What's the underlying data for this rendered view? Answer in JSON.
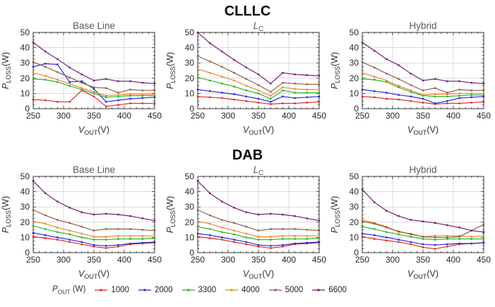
{
  "chart_groups": [
    {
      "title": "CLLLC"
    },
    {
      "title": "DAB"
    }
  ],
  "axis": {
    "x": {
      "label_main": "V",
      "label_sub": "OUT",
      "label_unit": "(V)",
      "min": 250,
      "max": 450,
      "ticks": [
        250,
        300,
        350,
        400,
        450
      ],
      "minor_step": 10,
      "grid": [
        300,
        350,
        400
      ]
    },
    "y": {
      "label_main": "P",
      "label_sub": "LOSS",
      "label_unit": "(W)",
      "min": 0,
      "max": 50,
      "ticks": [
        0,
        10,
        20,
        30,
        40,
        50
      ],
      "minor_step": 2.5,
      "grid": [
        10,
        20,
        30,
        40
      ]
    }
  },
  "legend": {
    "label_main": "P",
    "label_sub": "OUT",
    "label_unit": "(W)",
    "entries": [
      {
        "label": "1000",
        "color": "#e02721"
      },
      {
        "label": "2000",
        "color": "#2727d8"
      },
      {
        "label": "3300",
        "color": "#23b523"
      },
      {
        "label": "4000",
        "color": "#e8882a"
      },
      {
        "label": "5000",
        "color": "#8e5c44"
      },
      {
        "label": "6600",
        "color": "#6f1a72"
      }
    ]
  },
  "chart_data": [
    {
      "type": "line",
      "group": "CLLLC",
      "title_main": "Base Line",
      "title_sub": "",
      "xlim": [
        250,
        450
      ],
      "ylim": [
        0,
        50
      ],
      "xlabel": "V_OUT(V)",
      "ylabel": "P_LOSS(W)",
      "x": [
        250,
        270,
        290,
        310,
        330,
        350,
        370,
        390,
        410,
        430,
        450
      ],
      "series": [
        {
          "name": "1000",
          "values": [
            6,
            5.5,
            4.5,
            4.5,
            12,
            8,
            1.5,
            2.5,
            3.5,
            3.5,
            3.5
          ]
        },
        {
          "name": "2000",
          "values": [
            27.5,
            29.5,
            29,
            17.5,
            18,
            13,
            4.5,
            5.5,
            6.5,
            7,
            7.5
          ]
        },
        {
          "name": "3300",
          "values": [
            19.5,
            19,
            17.5,
            15,
            12.5,
            10,
            7.5,
            8,
            8.5,
            8.5,
            8.5
          ]
        },
        {
          "name": "4000",
          "values": [
            23.5,
            21.5,
            19,
            16.5,
            13.5,
            11,
            8.5,
            9,
            9.5,
            9.5,
            9.5
          ]
        },
        {
          "name": "5000",
          "values": [
            30.5,
            27.5,
            24,
            20.5,
            17,
            14,
            13.5,
            10.5,
            12.5,
            12,
            12
          ]
        },
        {
          "name": "6600",
          "values": [
            43.5,
            37.5,
            32.5,
            27,
            22.5,
            18.5,
            19.5,
            18,
            18,
            17,
            16.5
          ]
        }
      ]
    },
    {
      "type": "line",
      "group": "CLLLC",
      "title_main": "L",
      "title_sub": "C",
      "xlim": [
        250,
        450
      ],
      "ylim": [
        0,
        50
      ],
      "xlabel": "V_OUT(V)",
      "ylabel": "P_LOSS(W)",
      "x": [
        250,
        270,
        290,
        310,
        330,
        350,
        370,
        390,
        410,
        430,
        450
      ],
      "series": [
        {
          "name": "1000",
          "values": [
            8,
            7.5,
            7,
            6,
            5,
            4,
            3,
            3.5,
            3.5,
            4,
            4.5
          ]
        },
        {
          "name": "2000",
          "values": [
            12.5,
            11.5,
            10.5,
            9.5,
            8,
            6.5,
            4.5,
            8,
            7,
            7.5,
            8
          ]
        },
        {
          "name": "3300",
          "values": [
            20.5,
            18.5,
            16.5,
            14.5,
            12,
            10,
            6.5,
            12,
            10.5,
            10.5,
            10.5
          ]
        },
        {
          "name": "4000",
          "values": [
            26,
            23.5,
            21,
            18.5,
            15,
            12,
            8.5,
            14,
            13,
            12.5,
            12.5
          ]
        },
        {
          "name": "5000",
          "values": [
            34.5,
            31,
            27.5,
            23.5,
            19.5,
            15.5,
            11,
            17,
            16.5,
            16,
            16
          ]
        },
        {
          "name": "6600",
          "values": [
            50,
            43,
            37.5,
            32,
            27,
            22.5,
            16.5,
            23.5,
            22.5,
            22,
            21.5
          ]
        }
      ]
    },
    {
      "type": "line",
      "group": "CLLLC",
      "title_main": "Hybrid",
      "title_sub": "",
      "xlim": [
        250,
        450
      ],
      "ylim": [
        0,
        50
      ],
      "xlabel": "V_OUT(V)",
      "ylabel": "P_LOSS(W)",
      "x": [
        250,
        270,
        290,
        310,
        330,
        350,
        370,
        390,
        410,
        430,
        450
      ],
      "series": [
        {
          "name": "1000",
          "values": [
            8,
            7.5,
            6.5,
            6,
            5,
            4,
            3,
            3.5,
            3.5,
            4,
            4.5
          ]
        },
        {
          "name": "2000",
          "values": [
            12.5,
            11.5,
            10.5,
            9,
            8,
            6.5,
            3.5,
            5,
            7,
            7.5,
            8
          ]
        },
        {
          "name": "3300",
          "values": [
            19.5,
            19,
            17.5,
            14,
            11,
            8.5,
            8,
            8,
            8.5,
            9,
            9
          ]
        },
        {
          "name": "4000",
          "values": [
            23.5,
            21,
            18.5,
            15,
            12,
            9,
            9.5,
            9.5,
            10,
            10,
            10
          ]
        },
        {
          "name": "5000",
          "values": [
            30.5,
            27,
            23,
            19.5,
            15.5,
            12,
            13.5,
            10.5,
            12.5,
            12,
            12
          ]
        },
        {
          "name": "6600",
          "values": [
            43.5,
            38,
            32.5,
            28.5,
            23,
            18.5,
            19.5,
            18,
            18,
            17,
            16.5
          ]
        }
      ]
    },
    {
      "type": "line",
      "group": "DAB",
      "title_main": "Base Line",
      "title_sub": "",
      "xlim": [
        250,
        450
      ],
      "ylim": [
        0,
        50
      ],
      "xlabel": "V_OUT(V)",
      "ylabel": "P_LOSS(W)",
      "x": [
        250,
        270,
        290,
        310,
        330,
        350,
        370,
        390,
        410,
        430,
        450
      ],
      "series": [
        {
          "name": "1000",
          "values": [
            10.5,
            9.5,
            8.5,
            7,
            5.5,
            4,
            3,
            4,
            5.5,
            6,
            6.5
          ]
        },
        {
          "name": "2000",
          "values": [
            13,
            11.5,
            10,
            8.5,
            7,
            5,
            4.5,
            5,
            6,
            6.5,
            7
          ]
        },
        {
          "name": "3300",
          "values": [
            17.5,
            15.5,
            13.5,
            12,
            10,
            8.5,
            8.5,
            9,
            9,
            9,
            9.5
          ]
        },
        {
          "name": "4000",
          "values": [
            20.5,
            19,
            16.5,
            14.5,
            12.5,
            10.5,
            10.5,
            11,
            11,
            11,
            11
          ]
        },
        {
          "name": "5000",
          "values": [
            28,
            24.5,
            21.5,
            19.5,
            17,
            14.5,
            15.5,
            15.5,
            15.5,
            15,
            14.5
          ]
        },
        {
          "name": "6600",
          "values": [
            47,
            39,
            33.5,
            29.5,
            26.5,
            25,
            25.5,
            25,
            24,
            22.5,
            21
          ]
        }
      ]
    },
    {
      "type": "line",
      "group": "DAB",
      "title_main": "L",
      "title_sub": "C",
      "xlim": [
        250,
        450
      ],
      "ylim": [
        0,
        50
      ],
      "xlabel": "V_OUT(V)",
      "ylabel": "P_LOSS(W)",
      "x": [
        250,
        270,
        290,
        310,
        330,
        350,
        370,
        390,
        410,
        430,
        450
      ],
      "series": [
        {
          "name": "1000",
          "values": [
            10.5,
            9.5,
            8.5,
            7,
            5.5,
            4,
            3,
            4,
            5.5,
            6,
            6.5
          ]
        },
        {
          "name": "2000",
          "values": [
            12.5,
            11.5,
            10,
            8.5,
            7,
            5,
            4.5,
            5,
            6,
            6.5,
            7
          ]
        },
        {
          "name": "3300",
          "values": [
            17,
            15.5,
            13.5,
            12,
            10,
            8.5,
            8.5,
            9,
            9,
            9,
            9.5
          ]
        },
        {
          "name": "4000",
          "values": [
            20.5,
            19,
            16.5,
            14.5,
            12.5,
            10.5,
            10.5,
            11,
            11,
            11,
            11
          ]
        },
        {
          "name": "5000",
          "values": [
            28,
            24.5,
            21.5,
            19.5,
            17,
            14.5,
            15.5,
            15.5,
            15.5,
            15,
            14.5
          ]
        },
        {
          "name": "6600",
          "values": [
            47,
            39,
            33.5,
            29.5,
            26.5,
            25,
            25.5,
            25,
            24,
            22.5,
            21
          ]
        }
      ]
    },
    {
      "type": "line",
      "group": "DAB",
      "title_main": "Hybrid",
      "title_sub": "",
      "xlim": [
        250,
        450
      ],
      "ylim": [
        0,
        50
      ],
      "xlabel": "V_OUT(V)",
      "ylabel": "P_LOSS(W)",
      "x": [
        250,
        270,
        290,
        310,
        330,
        350,
        370,
        390,
        410,
        430,
        450
      ],
      "series": [
        {
          "name": "1000",
          "values": [
            10.5,
            9,
            8,
            7,
            5.5,
            3.5,
            2.5,
            4,
            5.5,
            6,
            6.5
          ]
        },
        {
          "name": "2000",
          "values": [
            12.5,
            11.5,
            10,
            8.5,
            7,
            5.5,
            5,
            5.5,
            6,
            6,
            6.5
          ]
        },
        {
          "name": "3300",
          "values": [
            17,
            15.5,
            13.5,
            12,
            10.5,
            9,
            8.5,
            9,
            9,
            9,
            9
          ]
        },
        {
          "name": "4000",
          "values": [
            21.5,
            19.5,
            17,
            13.5,
            12.5,
            10.5,
            11,
            11,
            11,
            10.5,
            11
          ]
        },
        {
          "name": "5000",
          "values": [
            20.5,
            19,
            16.5,
            14,
            12,
            10.5,
            10,
            10,
            10.5,
            14.5,
            18.5
          ]
        },
        {
          "name": "6600",
          "values": [
            41.5,
            33,
            27.5,
            24,
            21.5,
            20.5,
            19.5,
            18,
            16.5,
            14.5,
            13.5
          ]
        }
      ]
    }
  ]
}
